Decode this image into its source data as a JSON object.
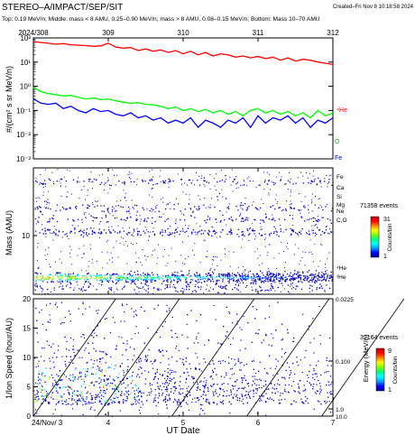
{
  "header": {
    "title": "STEREO–A/IMPACT/SEP/SIT",
    "created": "Created–Fri Nov  8 10:18:58 2024",
    "subtitle": "Top: 0.19 MeV/n; Middle: mass < 8 AMU, 0.25–0.90 MeV/n; mass > 8 AMU, 0.08–0.15 MeV/n; Bottom: Mass 10–70 AMU"
  },
  "colors": {
    "he": "#ff0000",
    "o": "#00ff00",
    "fe": "#0000ff",
    "scatter": "#0000cc",
    "colorbar": [
      "#0000a0",
      "#0000ff",
      "#00a0ff",
      "#00ffff",
      "#00ff80",
      "#80ff00",
      "#ffff00",
      "#ff8000",
      "#ff0000",
      "#c00000"
    ]
  },
  "chart_data": [
    {
      "type": "line",
      "top_axis_ticks": [
        "2024/308",
        "309",
        "310",
        "311",
        "312"
      ],
      "ylabel": "#/(cm² s sr MeV/n)",
      "yscale": "log",
      "ylim": [
        0.001,
        100
      ],
      "yticks": [
        "10²",
        "10¹",
        "10⁰",
        "10⁻¹",
        "10⁻²",
        "10⁻³"
      ],
      "xlim": [
        308,
        312
      ],
      "series": [
        {
          "name": "⁴He",
          "x": [
            308.0,
            308.1,
            308.2,
            308.3,
            308.4,
            308.5,
            308.6,
            308.7,
            308.8,
            308.9,
            309.0,
            309.1,
            309.2,
            309.3,
            309.4,
            309.5,
            309.6,
            309.7,
            309.8,
            309.9,
            310.0,
            310.1,
            310.2,
            310.3,
            310.4,
            310.5,
            310.6,
            310.7,
            310.8,
            310.9,
            311.0,
            311.1,
            311.2,
            311.3,
            311.4,
            311.5,
            311.6,
            311.7,
            311.8,
            311.9,
            312.0
          ],
          "y": [
            70,
            65,
            60,
            55,
            58,
            52,
            50,
            48,
            45,
            47,
            60,
            42,
            38,
            40,
            30,
            35,
            28,
            32,
            25,
            30,
            22,
            28,
            20,
            25,
            18,
            22,
            20,
            16,
            18,
            15,
            17,
            14,
            16,
            12,
            15,
            11,
            13,
            12,
            10,
            9,
            8
          ]
        },
        {
          "name": "O",
          "x": [
            308.0,
            308.1,
            308.2,
            308.3,
            308.4,
            308.5,
            308.6,
            308.7,
            308.8,
            308.9,
            309.0,
            309.1,
            309.2,
            309.3,
            309.4,
            309.5,
            309.6,
            309.7,
            309.8,
            309.9,
            310.0,
            310.1,
            310.2,
            310.3,
            310.4,
            310.5,
            310.6,
            310.7,
            310.8,
            310.9,
            311.0,
            311.1,
            311.2,
            311.3,
            311.4,
            311.5,
            311.6,
            311.7,
            311.8,
            311.9,
            312.0
          ],
          "y": [
            0.9,
            0.6,
            0.5,
            0.45,
            0.4,
            0.42,
            0.35,
            0.3,
            0.33,
            0.28,
            0.3,
            0.25,
            0.22,
            0.2,
            0.21,
            0.18,
            0.17,
            0.15,
            0.12,
            0.14,
            0.1,
            0.12,
            0.09,
            0.11,
            0.08,
            0.1,
            0.07,
            0.09,
            0.06,
            0.1,
            0.12,
            0.08,
            0.1,
            0.07,
            0.09,
            0.06,
            0.08,
            0.05,
            0.1,
            0.06,
            0.08
          ]
        },
        {
          "name": "Fe",
          "x": [
            308.0,
            308.1,
            308.2,
            308.3,
            308.4,
            308.5,
            308.6,
            308.7,
            308.8,
            308.9,
            309.0,
            309.1,
            309.2,
            309.3,
            309.4,
            309.5,
            309.6,
            309.7,
            309.8,
            309.9,
            310.0,
            310.1,
            310.2,
            310.3,
            310.4,
            310.5,
            310.6,
            310.7,
            310.8,
            310.9,
            311.0,
            311.1,
            311.2,
            311.3,
            311.4,
            311.5,
            311.6,
            311.7,
            311.8,
            311.9,
            312.0
          ],
          "y": [
            0.3,
            0.2,
            0.18,
            0.2,
            0.12,
            0.15,
            0.1,
            0.08,
            0.12,
            0.09,
            0.1,
            0.07,
            0.06,
            0.08,
            0.05,
            0.06,
            0.04,
            0.05,
            0.03,
            0.04,
            0.03,
            0.05,
            0.02,
            0.04,
            0.03,
            0.02,
            0.04,
            0.03,
            0.05,
            0.02,
            0.06,
            0.03,
            0.05,
            0.04,
            0.06,
            0.03,
            0.05,
            0.02,
            0.04,
            0.03,
            0.05
          ]
        }
      ],
      "right_labels": [
        "⁴He",
        "O",
        "Fe"
      ]
    },
    {
      "type": "heatmap",
      "ylabel": "Mass (AMU)",
      "yscale": "log",
      "ytick_label": "10",
      "right_labels": [
        "Fe",
        "Ca",
        "Si",
        "Mg",
        "Ne",
        "C,O",
        "⁴He",
        "³He"
      ],
      "colorbar": {
        "events": "71358 events",
        "max": "31",
        "min": "1",
        "label": "Counts/bin"
      },
      "bands": [
        {
          "mass": 4,
          "intensity": "high"
        },
        {
          "mass": 3,
          "intensity": "low"
        },
        {
          "mass": 14,
          "intensity": "medium"
        },
        {
          "mass": 20,
          "intensity": "low"
        },
        {
          "mass": 27,
          "intensity": "low"
        },
        {
          "mass": 56,
          "intensity": "low"
        }
      ]
    },
    {
      "type": "scatter",
      "xlabel": "UT Date",
      "ylabel": "1/Ion Speed (hour/AU)",
      "ylim": [
        0,
        20
      ],
      "yticks": [
        "20",
        "15",
        "10",
        "5",
        "0"
      ],
      "xticks": [
        "24/Nov/ 3",
        "4",
        "5",
        "6",
        "7"
      ],
      "xlim": [
        3,
        7
      ],
      "right_axis_label": "Energy (MeV/n)",
      "right_ticks": [
        "0.0225",
        "0.100",
        "1.0",
        "10.0"
      ],
      "colorbar": {
        "events": "32164 events",
        "max": "9",
        "min": "1",
        "label": "Counts/bin"
      }
    }
  ]
}
